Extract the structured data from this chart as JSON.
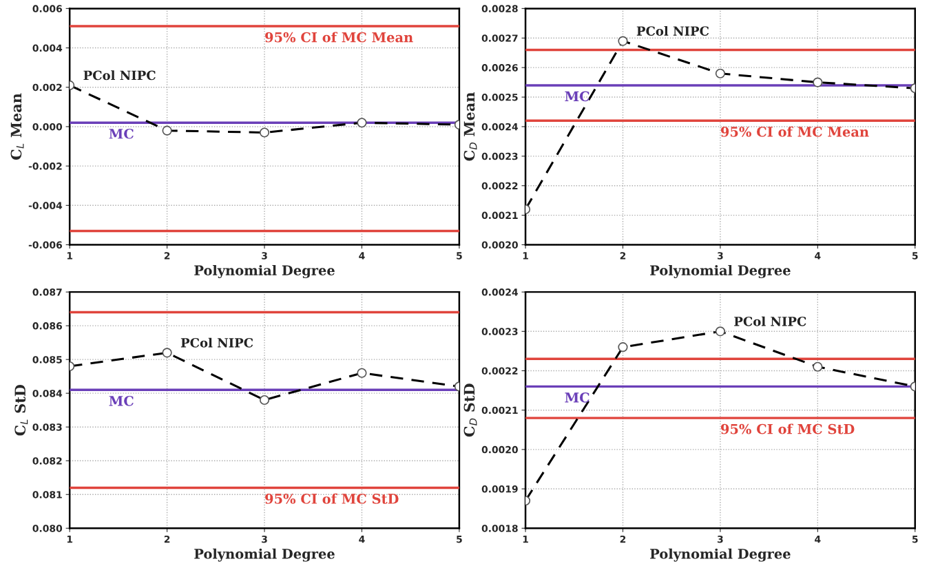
{
  "chart_data": [
    {
      "type": "line",
      "xlabel": "Polynomial Degree",
      "ylabel": "C$_{L}$ Mean",
      "x": [
        1,
        2,
        3,
        4,
        5
      ],
      "xlim": [
        1,
        5
      ],
      "xticks": [
        1,
        2,
        3,
        4,
        5
      ],
      "ylim": [
        -0.006,
        0.006
      ],
      "yticks": [
        {
          "value": -0.006,
          "label": "-0.006"
        },
        {
          "value": -0.004,
          "label": "-0.004"
        },
        {
          "value": -0.002,
          "label": "-0.002"
        },
        {
          "value": 0,
          "label": "0.000"
        },
        {
          "value": 0.002,
          "label": "0.002"
        },
        {
          "value": 0.004,
          "label": "0.004"
        },
        {
          "value": 0.006,
          "label": "0.006"
        }
      ],
      "grid": true,
      "marker": "circle",
      "line_style": "dashed",
      "series": [
        {
          "name": "PCol NIPC",
          "color": "#000000",
          "values": [
            0.0021,
            -0.0002,
            -0.0003,
            0.0002,
            0.0001
          ]
        }
      ],
      "ref_lines": [
        {
          "axis": "y",
          "value": 0.0051,
          "label": "95% CI of MC Mean",
          "color": "#e0443c"
        },
        {
          "axis": "y",
          "value": 0.0002,
          "label": "MC",
          "color": "#6a3fb8"
        },
        {
          "axis": "y",
          "value": -0.0053,
          "label": null,
          "color": "#e0443c"
        }
      ]
    },
    {
      "type": "line",
      "xlabel": "Polynomial Degree",
      "ylabel": "C$_{D}$ Mean",
      "x": [
        1,
        2,
        3,
        4,
        5
      ],
      "xlim": [
        1,
        5
      ],
      "xticks": [
        1,
        2,
        3,
        4,
        5
      ],
      "ylim": [
        0.002,
        0.0028
      ],
      "yticks": [
        {
          "value": 0.002,
          "label": "0.0020"
        },
        {
          "value": 0.0021,
          "label": "0.0021"
        },
        {
          "value": 0.0022,
          "label": "0.0022"
        },
        {
          "value": 0.0023,
          "label": "0.0023"
        },
        {
          "value": 0.0024,
          "label": "0.0024"
        },
        {
          "value": 0.0025,
          "label": "0.0025"
        },
        {
          "value": 0.0026,
          "label": "0.0026"
        },
        {
          "value": 0.0027,
          "label": "0.0027"
        },
        {
          "value": 0.0028,
          "label": "0.0028"
        }
      ],
      "grid": true,
      "marker": "circle",
      "line_style": "dashed",
      "series": [
        {
          "name": "PCol NIPC",
          "color": "#000000",
          "values": [
            0.00212,
            0.00269,
            0.00258,
            0.00255,
            0.00253
          ]
        }
      ],
      "ref_lines": [
        {
          "axis": "y",
          "value": 0.00266,
          "label": null,
          "color": "#e0443c"
        },
        {
          "axis": "y",
          "value": 0.00254,
          "label": "MC",
          "color": "#6a3fb8"
        },
        {
          "axis": "y",
          "value": 0.00242,
          "label": "95% CI of MC Mean",
          "color": "#e0443c"
        }
      ]
    },
    {
      "type": "line",
      "xlabel": "Polynomial Degree",
      "ylabel": "C$_{L}$ StD",
      "x": [
        1,
        2,
        3,
        4,
        5
      ],
      "xlim": [
        1,
        5
      ],
      "xticks": [
        1,
        2,
        3,
        4,
        5
      ],
      "ylim": [
        0.08,
        0.087
      ],
      "yticks": [
        {
          "value": 0.08,
          "label": "0.080"
        },
        {
          "value": 0.081,
          "label": "0.081"
        },
        {
          "value": 0.082,
          "label": "0.082"
        },
        {
          "value": 0.083,
          "label": "0.083"
        },
        {
          "value": 0.084,
          "label": "0.084"
        },
        {
          "value": 0.085,
          "label": "0.085"
        },
        {
          "value": 0.086,
          "label": "0.086"
        },
        {
          "value": 0.087,
          "label": "0.087"
        }
      ],
      "grid": true,
      "marker": "circle",
      "line_style": "dashed",
      "series": [
        {
          "name": "PCol NIPC",
          "color": "#000000",
          "values": [
            0.0848,
            0.0852,
            0.0838,
            0.0846,
            0.0842
          ]
        }
      ],
      "ref_lines": [
        {
          "axis": "y",
          "value": 0.0864,
          "label": null,
          "color": "#e0443c"
        },
        {
          "axis": "y",
          "value": 0.0841,
          "label": "MC",
          "color": "#6a3fb8"
        },
        {
          "axis": "y",
          "value": 0.0812,
          "label": "95% CI of MC StD",
          "color": "#e0443c"
        }
      ]
    },
    {
      "type": "line",
      "xlabel": "Polynomial Degree",
      "ylabel": "C$_{D}$ StD",
      "x": [
        1,
        2,
        3,
        4,
        5
      ],
      "xlim": [
        1,
        5
      ],
      "xticks": [
        1,
        2,
        3,
        4,
        5
      ],
      "ylim": [
        0.0018,
        0.0024
      ],
      "yticks": [
        {
          "value": 0.0018,
          "label": "0.0018"
        },
        {
          "value": 0.0019,
          "label": "0.0019"
        },
        {
          "value": 0.002,
          "label": "0.0020"
        },
        {
          "value": 0.0021,
          "label": "0.0021"
        },
        {
          "value": 0.0022,
          "label": "0.0022"
        },
        {
          "value": 0.0023,
          "label": "0.0023"
        },
        {
          "value": 0.0024,
          "label": "0.0024"
        }
      ],
      "grid": true,
      "marker": "circle",
      "line_style": "dashed",
      "series": [
        {
          "name": "PCol NIPC",
          "color": "#000000",
          "values": [
            0.00187,
            0.00226,
            0.0023,
            0.00221,
            0.00216
          ]
        }
      ],
      "ref_lines": [
        {
          "axis": "y",
          "value": 0.00223,
          "label": null,
          "color": "#e0443c"
        },
        {
          "axis": "y",
          "value": 0.00216,
          "label": "MC",
          "color": "#6a3fb8"
        },
        {
          "axis": "y",
          "value": 0.00208,
          "label": "95% CI of MC StD",
          "color": "#e0443c"
        }
      ]
    }
  ]
}
